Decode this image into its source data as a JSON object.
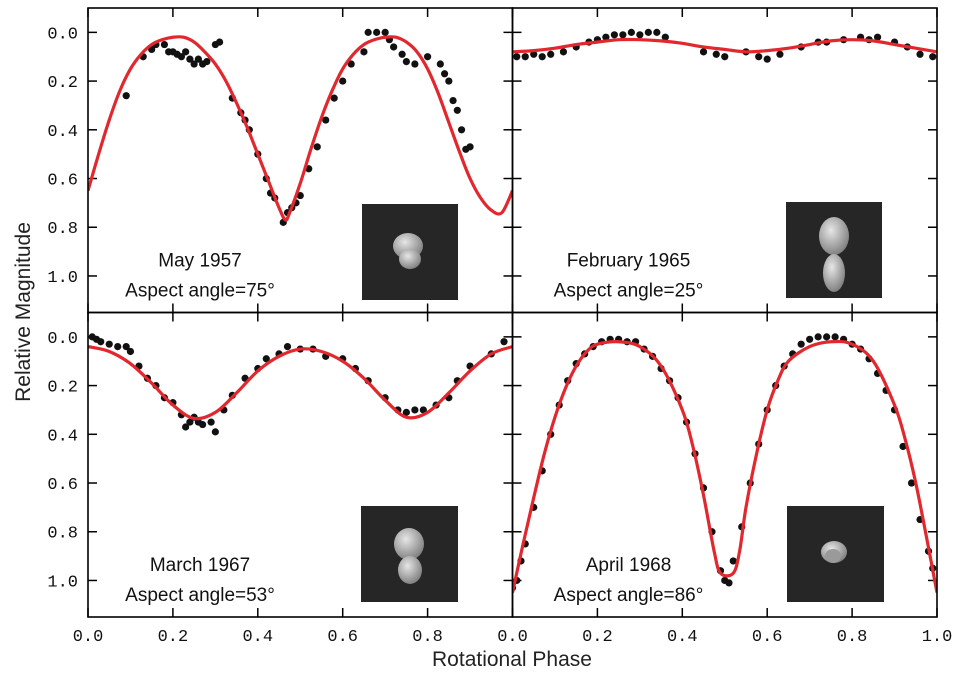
{
  "figure": {
    "xlabel": "Rotational Phase",
    "ylabel": "Relative Magnitude"
  },
  "chart_data": [
    {
      "type": "scatter",
      "title": "May 1957",
      "subtitle": "Aspect angle=75°",
      "xlim": [
        0,
        1
      ],
      "ylim": [
        -0.1,
        1.15
      ],
      "invert_y": true,
      "xtick_labels": false,
      "ytick_labels": true,
      "xticks": [
        0,
        0.2,
        0.4,
        0.6,
        0.8,
        1
      ],
      "yticks": [
        {
          "value": 0,
          "label": "0.0"
        },
        0.2,
        0.4,
        0.6,
        0.8,
        {
          "value": 1,
          "label": "1.0"
        }
      ],
      "series": [
        {
          "type": "scatter",
          "color": "#111111",
          "x": [
            0.09,
            0.13,
            0.15,
            0.16,
            0.18,
            0.19,
            0.2,
            0.21,
            0.22,
            0.23,
            0.24,
            0.25,
            0.26,
            0.27,
            0.28,
            0.3,
            0.31,
            0.34,
            0.36,
            0.37,
            0.38,
            0.4,
            0.42,
            0.43,
            0.44,
            0.46,
            0.47,
            0.48,
            0.49,
            0.5,
            0.52,
            0.54,
            0.56,
            0.58,
            0.6,
            0.62,
            0.65,
            0.66,
            0.68,
            0.7,
            0.71,
            0.72,
            0.74,
            0.75,
            0.77,
            0.8,
            0.83,
            0.84,
            0.85,
            0.86,
            0.87,
            0.88,
            0.89,
            0.9
          ],
          "values": [
            0.26,
            0.1,
            0.07,
            0.05,
            0.05,
            0.08,
            0.08,
            0.09,
            0.1,
            0.08,
            0.11,
            0.13,
            0.11,
            0.13,
            0.12,
            0.05,
            0.04,
            0.27,
            0.33,
            0.36,
            0.4,
            0.5,
            0.6,
            0.66,
            0.68,
            0.78,
            0.74,
            0.72,
            0.7,
            0.67,
            0.56,
            0.47,
            0.36,
            0.27,
            0.2,
            0.13,
            0.08,
            0,
            0,
            0,
            0.03,
            0.06,
            0.09,
            0.12,
            0.13,
            0.1,
            0.13,
            0.17,
            0.2,
            0.28,
            0.32,
            0.4,
            0.48,
            0.47
          ]
        },
        {
          "type": "line",
          "color": "#e0282e",
          "x": [
            0,
            0.025,
            0.05,
            0.075,
            0.1,
            0.125,
            0.15,
            0.175,
            0.2,
            0.225,
            0.25,
            0.275,
            0.3,
            0.325,
            0.35,
            0.375,
            0.4,
            0.425,
            0.45,
            0.465,
            0.475,
            0.5,
            0.525,
            0.55,
            0.575,
            0.6,
            0.625,
            0.65,
            0.675,
            0.7,
            0.725,
            0.75,
            0.775,
            0.8,
            0.825,
            0.85,
            0.875,
            0.9,
            0.925,
            0.95,
            0.975,
            1
          ],
          "values": [
            0.65,
            0.5,
            0.36,
            0.24,
            0.15,
            0.09,
            0.05,
            0.03,
            0.02,
            0.02,
            0.04,
            0.08,
            0.13,
            0.2,
            0.29,
            0.39,
            0.5,
            0.61,
            0.72,
            0.77,
            0.74,
            0.62,
            0.48,
            0.35,
            0.24,
            0.15,
            0.09,
            0.05,
            0.03,
            0.02,
            0.02,
            0.04,
            0.08,
            0.15,
            0.25,
            0.37,
            0.49,
            0.6,
            0.68,
            0.73,
            0.74,
            0.65
          ]
        }
      ]
    },
    {
      "type": "scatter",
      "title": "February 1965",
      "subtitle": "Aspect angle=25°",
      "xlim": [
        0,
        1
      ],
      "ylim": [
        -0.1,
        1.15
      ],
      "invert_y": true,
      "xtick_labels": false,
      "ytick_labels": false,
      "xticks": [
        0,
        0.2,
        0.4,
        0.6,
        0.8,
        1
      ],
      "yticks": [
        0,
        0.2,
        0.4,
        0.6,
        0.8,
        1
      ],
      "series": [
        {
          "type": "scatter",
          "color": "#111111",
          "x": [
            0.01,
            0.03,
            0.05,
            0.07,
            0.09,
            0.12,
            0.15,
            0.18,
            0.2,
            0.22,
            0.24,
            0.26,
            0.28,
            0.3,
            0.32,
            0.34,
            0.36,
            0.45,
            0.48,
            0.5,
            0.55,
            0.58,
            0.6,
            0.63,
            0.68,
            0.72,
            0.74,
            0.78,
            0.82,
            0.84,
            0.86,
            0.9,
            0.93,
            0.96,
            0.99
          ],
          "values": [
            0.1,
            0.1,
            0.09,
            0.1,
            0.09,
            0.08,
            0.06,
            0.04,
            0.03,
            0.02,
            0.01,
            0.01,
            0,
            0.01,
            0,
            0,
            0.02,
            0.08,
            0.09,
            0.1,
            0.08,
            0.1,
            0.11,
            0.09,
            0.06,
            0.04,
            0.04,
            0.03,
            0.02,
            0.03,
            0.02,
            0.04,
            0.06,
            0.09,
            0.1
          ]
        },
        {
          "type": "line",
          "color": "#e0282e",
          "x": [
            0,
            0.05,
            0.1,
            0.15,
            0.2,
            0.25,
            0.3,
            0.35,
            0.4,
            0.45,
            0.5,
            0.55,
            0.6,
            0.65,
            0.7,
            0.75,
            0.8,
            0.85,
            0.9,
            0.95,
            1
          ],
          "values": [
            0.08,
            0.075,
            0.065,
            0.05,
            0.04,
            0.03,
            0.03,
            0.035,
            0.045,
            0.06,
            0.07,
            0.08,
            0.075,
            0.065,
            0.05,
            0.035,
            0.03,
            0.035,
            0.05,
            0.065,
            0.08
          ]
        }
      ]
    },
    {
      "type": "scatter",
      "title": "March 1967",
      "subtitle": "Aspect angle=53°",
      "xlim": [
        0,
        1
      ],
      "ylim": [
        -0.1,
        1.15
      ],
      "invert_y": true,
      "xtick_labels": true,
      "ytick_labels": true,
      "xticks": [
        {
          "value": 0,
          "label": "0.0"
        },
        0.2,
        0.4,
        0.6,
        0.8
      ],
      "yticks": [
        {
          "value": 0,
          "label": "0.0"
        },
        0.2,
        0.4,
        0.6,
        0.8,
        {
          "value": 1,
          "label": "1.0"
        }
      ],
      "series": [
        {
          "type": "scatter",
          "color": "#111111",
          "x": [
            0.01,
            0.02,
            0.03,
            0.05,
            0.07,
            0.09,
            0.1,
            0.12,
            0.14,
            0.16,
            0.18,
            0.2,
            0.22,
            0.23,
            0.24,
            0.25,
            0.26,
            0.27,
            0.29,
            0.3,
            0.32,
            0.34,
            0.37,
            0.4,
            0.42,
            0.45,
            0.47,
            0.5,
            0.53,
            0.56,
            0.6,
            0.63,
            0.66,
            0.7,
            0.73,
            0.75,
            0.77,
            0.79,
            0.82,
            0.85,
            0.87,
            0.9,
            0.95,
            0.98
          ],
          "values": [
            0,
            0.01,
            0.02,
            0.03,
            0.04,
            0.04,
            0.06,
            0.12,
            0.17,
            0.2,
            0.25,
            0.27,
            0.32,
            0.37,
            0.35,
            0.33,
            0.35,
            0.36,
            0.35,
            0.39,
            0.3,
            0.24,
            0.17,
            0.13,
            0.09,
            0.07,
            0.04,
            0.05,
            0.05,
            0.08,
            0.09,
            0.13,
            0.18,
            0.25,
            0.3,
            0.31,
            0.3,
            0.3,
            0.28,
            0.25,
            0.18,
            0.12,
            0.07,
            0.02
          ]
        },
        {
          "type": "line",
          "color": "#e0282e",
          "x": [
            0,
            0.05,
            0.1,
            0.15,
            0.2,
            0.25,
            0.3,
            0.35,
            0.4,
            0.45,
            0.5,
            0.55,
            0.6,
            0.65,
            0.7,
            0.75,
            0.8,
            0.85,
            0.9,
            0.95,
            1
          ],
          "values": [
            0.04,
            0.06,
            0.11,
            0.19,
            0.28,
            0.335,
            0.31,
            0.23,
            0.14,
            0.08,
            0.05,
            0.06,
            0.1,
            0.17,
            0.26,
            0.33,
            0.31,
            0.23,
            0.14,
            0.07,
            0.04
          ]
        }
      ]
    },
    {
      "type": "scatter",
      "title": "April 1968",
      "subtitle": "Aspect angle=86°",
      "xlim": [
        0,
        1
      ],
      "ylim": [
        -0.1,
        1.15
      ],
      "invert_y": true,
      "xtick_labels": true,
      "ytick_labels": false,
      "xticks": [
        {
          "value": 0,
          "label": "0.0"
        },
        0.2,
        0.4,
        0.6,
        0.8,
        {
          "value": 1,
          "label": "1.0"
        }
      ],
      "yticks": [
        0,
        0.2,
        0.4,
        0.6,
        0.8,
        1
      ],
      "series": [
        {
          "type": "scatter",
          "color": "#111111",
          "x": [
            0,
            0.01,
            0.02,
            0.03,
            0.05,
            0.07,
            0.09,
            0.11,
            0.13,
            0.15,
            0.17,
            0.19,
            0.21,
            0.23,
            0.25,
            0.27,
            0.29,
            0.31,
            0.33,
            0.35,
            0.37,
            0.39,
            0.41,
            0.43,
            0.45,
            0.47,
            0.49,
            0.5,
            0.51,
            0.52,
            0.54,
            0.56,
            0.58,
            0.6,
            0.62,
            0.64,
            0.66,
            0.68,
            0.7,
            0.72,
            0.74,
            0.76,
            0.78,
            0.8,
            0.82,
            0.84,
            0.86,
            0.88,
            0.9,
            0.92,
            0.94,
            0.96,
            0.98,
            0.99
          ],
          "values": [
            1.03,
            1,
            0.92,
            0.85,
            0.7,
            0.55,
            0.4,
            0.28,
            0.18,
            0.11,
            0.07,
            0.04,
            0.02,
            0.01,
            0.01,
            0.02,
            0.02,
            0.05,
            0.08,
            0.13,
            0.18,
            0.25,
            0.35,
            0.48,
            0.62,
            0.8,
            0.96,
            1,
            1.01,
            0.92,
            0.78,
            0.6,
            0.44,
            0.3,
            0.2,
            0.12,
            0.07,
            0.03,
            0.01,
            0,
            0,
            0,
            0.01,
            0.03,
            0.05,
            0.09,
            0.15,
            0.22,
            0.3,
            0.45,
            0.6,
            0.75,
            0.88,
            0.95
          ]
        },
        {
          "type": "line",
          "color": "#e0282e",
          "x": [
            0,
            0.025,
            0.05,
            0.075,
            0.1,
            0.125,
            0.15,
            0.175,
            0.2,
            0.25,
            0.3,
            0.35,
            0.4,
            0.425,
            0.45,
            0.475,
            0.49,
            0.52,
            0.535,
            0.55,
            0.575,
            0.6,
            0.625,
            0.65,
            0.7,
            0.75,
            0.8,
            0.85,
            0.9,
            0.925,
            0.95,
            0.975,
            1
          ],
          "values": [
            1.05,
            0.85,
            0.66,
            0.48,
            0.33,
            0.21,
            0.12,
            0.06,
            0.03,
            0.02,
            0.04,
            0.12,
            0.3,
            0.45,
            0.65,
            0.88,
            0.97,
            0.97,
            0.88,
            0.7,
            0.48,
            0.3,
            0.18,
            0.1,
            0.04,
            0.02,
            0.03,
            0.1,
            0.28,
            0.42,
            0.6,
            0.82,
            1.05
          ]
        }
      ]
    }
  ]
}
